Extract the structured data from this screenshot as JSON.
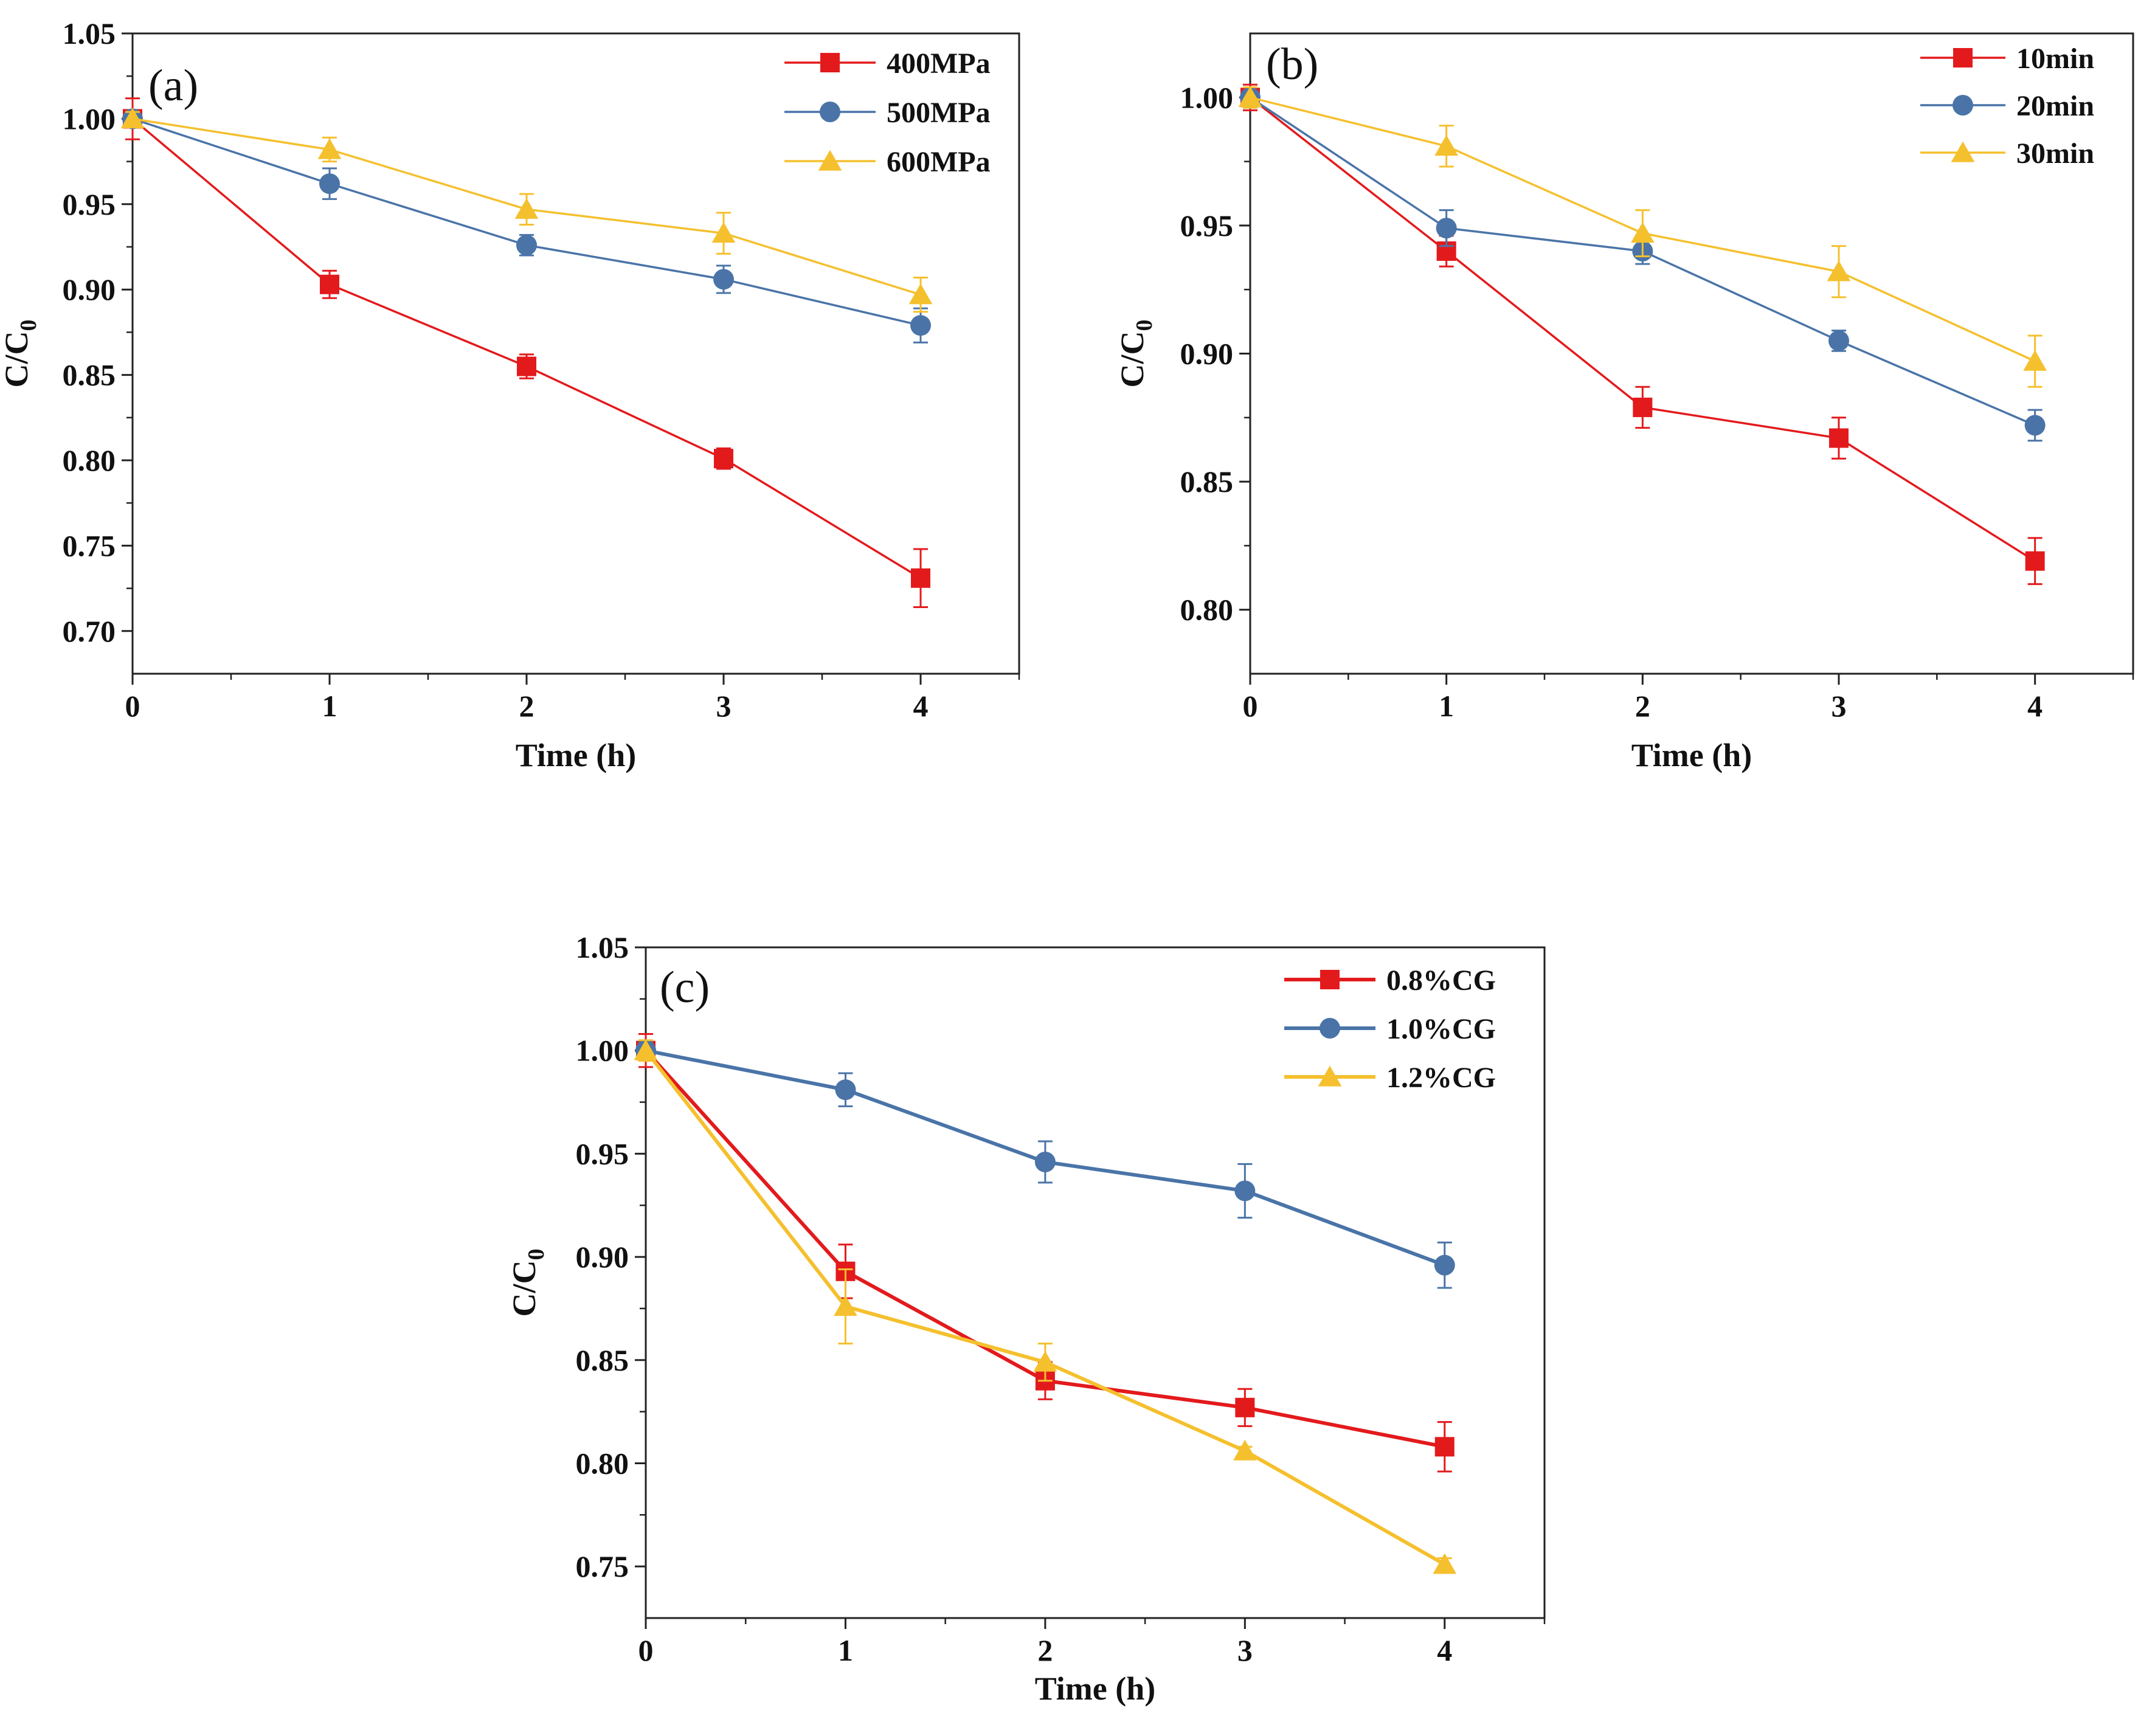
{
  "chart_data": [
    {
      "type": "line",
      "panel_label": "(a)",
      "title": "",
      "xlabel": "Time (h)",
      "ylabel": {
        "main": "C/C",
        "sub": "0"
      },
      "xlim": [
        0,
        4.5
      ],
      "ylim": [
        0.675,
        1.05
      ],
      "xticks": [
        0,
        1,
        2,
        3,
        4
      ],
      "xtick_labels": [
        "0",
        "1",
        "2",
        "3",
        "4"
      ],
      "yticks": [
        0.7,
        0.75,
        0.8,
        0.85,
        0.9,
        0.95,
        1.0,
        1.05
      ],
      "ytick_labels": [
        "0.70",
        "0.75",
        "0.80",
        "0.85",
        "0.90",
        "0.95",
        "1.00",
        "1.05"
      ],
      "legend_position": "top-right",
      "x": [
        0,
        1,
        2,
        3,
        4
      ],
      "series": [
        {
          "name": "400MPa",
          "color": "#e31a1c",
          "marker": "square",
          "values": [
            1.0,
            0.903,
            0.855,
            0.801,
            0.731
          ],
          "errors": [
            0.012,
            0.008,
            0.007,
            0.006,
            0.017
          ]
        },
        {
          "name": "500MPa",
          "color": "#4a74a8",
          "marker": "circle",
          "values": [
            1.0,
            0.962,
            0.926,
            0.906,
            0.879
          ],
          "errors": [
            0.004,
            0.009,
            0.006,
            0.008,
            0.01
          ]
        },
        {
          "name": "600MPa",
          "color": "#f5c02e",
          "marker": "triangle",
          "values": [
            1.0,
            0.982,
            0.947,
            0.933,
            0.897
          ],
          "errors": [
            0.004,
            0.007,
            0.009,
            0.012,
            0.01
          ]
        }
      ]
    },
    {
      "type": "line",
      "panel_label": "(b)",
      "title": "",
      "xlabel": "Time (h)",
      "ylabel": {
        "main": "C/C",
        "sub": "0"
      },
      "xlim": [
        0,
        4.5
      ],
      "ylim": [
        0.775,
        1.025
      ],
      "xticks": [
        0,
        1,
        2,
        3,
        4
      ],
      "xtick_labels": [
        "0",
        "1",
        "2",
        "3",
        "4"
      ],
      "yticks": [
        0.8,
        0.85,
        0.9,
        0.95,
        1.0
      ],
      "ytick_labels": [
        "0.80",
        "0.85",
        "0.90",
        "0.95",
        "1.00"
      ],
      "legend_position": "top-right",
      "x": [
        0,
        1,
        2,
        3,
        4
      ],
      "series": [
        {
          "name": "10min",
          "color": "#e31a1c",
          "marker": "square",
          "values": [
            1.0,
            0.94,
            0.879,
            0.867,
            0.819
          ],
          "errors": [
            0.005,
            0.006,
            0.008,
            0.008,
            0.009
          ]
        },
        {
          "name": "20min",
          "color": "#4a74a8",
          "marker": "circle",
          "values": [
            1.0,
            0.949,
            0.94,
            0.905,
            0.872
          ],
          "errors": [
            0.004,
            0.007,
            0.005,
            0.004,
            0.006
          ]
        },
        {
          "name": "30min",
          "color": "#f5c02e",
          "marker": "triangle",
          "values": [
            1.0,
            0.981,
            0.947,
            0.932,
            0.897
          ],
          "errors": [
            0.004,
            0.008,
            0.009,
            0.01,
            0.01
          ]
        }
      ]
    },
    {
      "type": "line",
      "panel_label": "(c)",
      "title": "",
      "xlabel": "Time (h)",
      "ylabel": {
        "main": "C/C",
        "sub": "0"
      },
      "xlim": [
        0,
        4.5
      ],
      "ylim": [
        0.725,
        1.05
      ],
      "xticks": [
        0,
        1,
        2,
        3,
        4
      ],
      "xtick_labels": [
        "0",
        "1",
        "2",
        "3",
        "4"
      ],
      "yticks": [
        0.75,
        0.8,
        0.85,
        0.9,
        0.95,
        1.0,
        1.05
      ],
      "ytick_labels": [
        "0.75",
        "0.80",
        "0.85",
        "0.90",
        "0.95",
        "1.00",
        "1.05"
      ],
      "legend_position": "top-right",
      "x": [
        0,
        1,
        2,
        3,
        4
      ],
      "series": [
        {
          "name": "0.8%CG",
          "color": "#e31a1c",
          "marker": "square",
          "values": [
            1.0,
            0.893,
            0.84,
            0.827,
            0.808
          ],
          "errors": [
            0.008,
            0.013,
            0.009,
            0.009,
            0.012
          ]
        },
        {
          "name": "1.0%CG",
          "color": "#4a74a8",
          "marker": "circle",
          "values": [
            1.0,
            0.981,
            0.946,
            0.932,
            0.896
          ],
          "errors": [
            0.004,
            0.008,
            0.01,
            0.013,
            0.011
          ]
        },
        {
          "name": "1.2%CG",
          "color": "#f5c02e",
          "marker": "triangle",
          "values": [
            1.0,
            0.876,
            0.849,
            0.806,
            0.751
          ],
          "errors": [
            0.005,
            0.018,
            0.009,
            0.002,
            0.003
          ]
        }
      ]
    }
  ]
}
